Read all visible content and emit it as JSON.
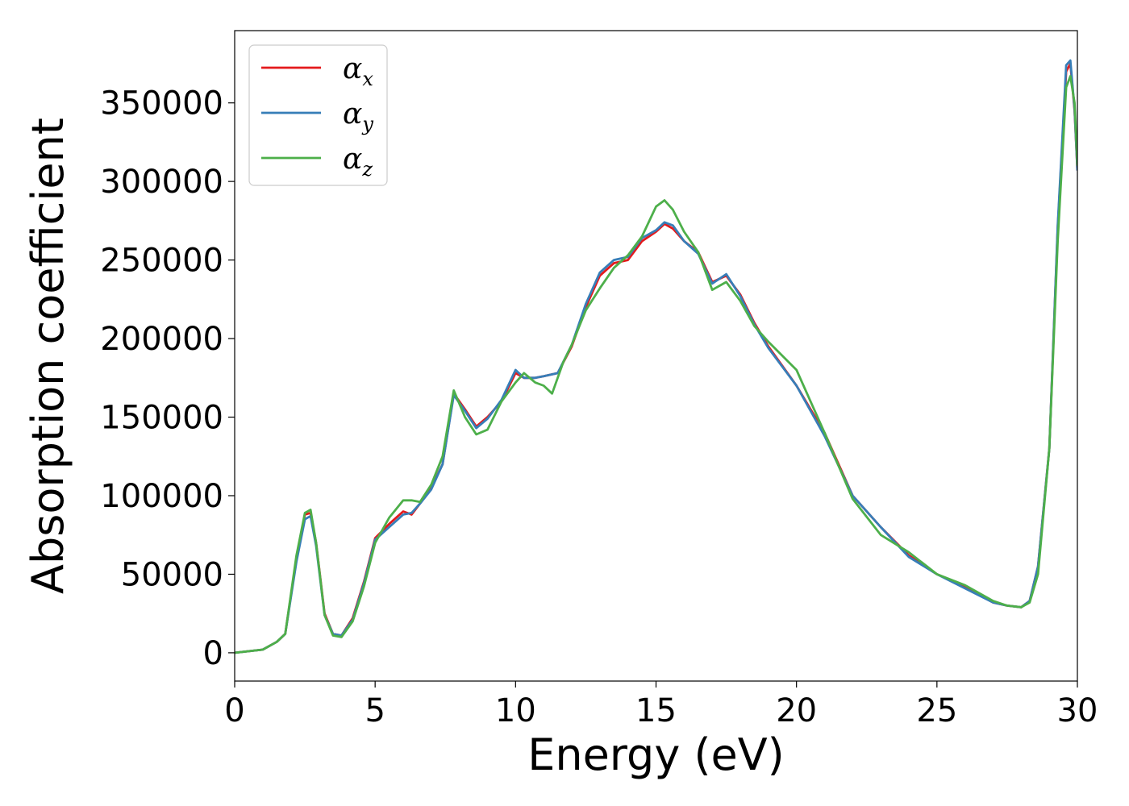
{
  "chart_data": {
    "type": "line",
    "title": "",
    "xlabel": "Energy (eV)",
    "ylabel": "Absorption coefficient",
    "xlim": [
      0,
      30
    ],
    "ylim": [
      -18000,
      396000
    ],
    "xticks": [
      0,
      5,
      10,
      15,
      20,
      25,
      30
    ],
    "xtick_labels": [
      "0",
      "5",
      "10",
      "15",
      "20",
      "25",
      "30"
    ],
    "yticks": [
      0,
      50000,
      100000,
      150000,
      200000,
      250000,
      300000,
      350000
    ],
    "ytick_labels": [
      "0",
      "50000",
      "100000",
      "150000",
      "200000",
      "250000",
      "300000",
      "350000"
    ],
    "grid": false,
    "legend_position": "top-left",
    "colors": {
      "alpha_x": "#e41a1c",
      "alpha_y": "#377eb8",
      "alpha_z": "#4daf4a"
    },
    "series": [
      {
        "name": "αx",
        "legend_base": "α",
        "legend_sub": "x",
        "color": "#e41a1c",
        "x": [
          0,
          1,
          1.5,
          1.8,
          2.2,
          2.5,
          2.7,
          2.9,
          3.2,
          3.5,
          3.8,
          4.2,
          4.6,
          5.0,
          5.5,
          6.0,
          6.3,
          6.6,
          7.0,
          7.4,
          7.8,
          8.2,
          8.6,
          9.0,
          9.5,
          10.0,
          10.3,
          10.7,
          11.0,
          11.5,
          12.0,
          12.5,
          13.0,
          13.5,
          14.0,
          14.5,
          15.0,
          15.3,
          15.6,
          16.0,
          16.5,
          17.0,
          17.5,
          18.0,
          18.5,
          19.0,
          20.0,
          21.0,
          22.0,
          23.0,
          24.0,
          25.0,
          26.0,
          27.0,
          27.5,
          28.0,
          28.3,
          28.6,
          29.0,
          29.3,
          29.6,
          29.75,
          29.9,
          30.0
        ],
        "y": [
          0,
          2000,
          7000,
          12000,
          60000,
          88000,
          89000,
          70000,
          25000,
          12000,
          11000,
          22000,
          45000,
          73000,
          82000,
          90000,
          88000,
          95000,
          105000,
          120000,
          165000,
          155000,
          144000,
          150000,
          160000,
          178000,
          175000,
          175000,
          176000,
          178000,
          195000,
          220000,
          240000,
          248000,
          250000,
          262000,
          268000,
          273000,
          270000,
          262000,
          255000,
          236000,
          240000,
          228000,
          210000,
          195000,
          170000,
          140000,
          100000,
          80000,
          62000,
          50000,
          42000,
          32000,
          30000,
          29000,
          33000,
          55000,
          130000,
          270000,
          370000,
          375000,
          345000,
          307000
        ]
      },
      {
        "name": "αy",
        "legend_base": "α",
        "legend_sub": "y",
        "color": "#377eb8",
        "x": [
          0,
          1,
          1.5,
          1.8,
          2.2,
          2.5,
          2.7,
          2.9,
          3.2,
          3.5,
          3.8,
          4.2,
          4.6,
          5.0,
          5.5,
          6.0,
          6.3,
          6.6,
          7.0,
          7.4,
          7.8,
          8.2,
          8.6,
          9.0,
          9.5,
          10.0,
          10.3,
          10.7,
          11.0,
          11.5,
          12.0,
          12.5,
          13.0,
          13.5,
          14.0,
          14.5,
          15.0,
          15.3,
          15.6,
          16.0,
          16.5,
          17.0,
          17.5,
          18.0,
          18.5,
          19.0,
          20.0,
          21.0,
          22.0,
          23.0,
          24.0,
          25.0,
          26.0,
          27.0,
          27.5,
          28.0,
          28.3,
          28.6,
          29.0,
          29.3,
          29.6,
          29.75,
          29.9,
          30.0
        ],
        "y": [
          0,
          2000,
          7000,
          12000,
          58000,
          85000,
          87000,
          68000,
          24000,
          12000,
          11000,
          21000,
          44000,
          72000,
          80000,
          88000,
          89000,
          95000,
          104000,
          120000,
          164000,
          154000,
          143000,
          149000,
          161000,
          180000,
          175000,
          175000,
          176000,
          178000,
          196000,
          222000,
          242000,
          250000,
          252000,
          264000,
          269000,
          274000,
          272000,
          262000,
          254000,
          235000,
          241000,
          227000,
          209000,
          194000,
          170000,
          138000,
          100000,
          80000,
          61000,
          50000,
          41000,
          32000,
          30000,
          29000,
          33000,
          55000,
          130000,
          272000,
          374000,
          377000,
          346000,
          307000
        ]
      },
      {
        "name": "αz",
        "legend_base": "α",
        "legend_sub": "z",
        "color": "#4daf4a",
        "x": [
          0,
          1,
          1.5,
          1.8,
          2.2,
          2.5,
          2.7,
          2.9,
          3.2,
          3.5,
          3.8,
          4.2,
          4.6,
          5.0,
          5.5,
          6.0,
          6.3,
          6.6,
          7.0,
          7.4,
          7.8,
          8.2,
          8.6,
          9.0,
          9.5,
          10.0,
          10.3,
          10.7,
          11.0,
          11.3,
          11.7,
          12.0,
          12.5,
          13.0,
          13.5,
          14.0,
          14.5,
          15.0,
          15.3,
          15.6,
          16.0,
          16.5,
          17.0,
          17.5,
          18.0,
          18.5,
          19.0,
          20.0,
          21.0,
          22.0,
          23.0,
          24.0,
          25.0,
          26.0,
          27.0,
          27.5,
          28.0,
          28.3,
          28.6,
          29.0,
          29.3,
          29.6,
          29.75,
          29.9,
          30.0
        ],
        "y": [
          0,
          2000,
          7000,
          12000,
          62000,
          89000,
          91000,
          70000,
          24000,
          11000,
          10000,
          20000,
          42000,
          70000,
          86000,
          97000,
          97000,
          96000,
          107000,
          125000,
          167000,
          150000,
          139000,
          142000,
          160000,
          172000,
          178000,
          172000,
          170000,
          165000,
          185000,
          196000,
          218000,
          232000,
          245000,
          253000,
          265000,
          284000,
          288000,
          282000,
          268000,
          255000,
          231000,
          236000,
          224000,
          208000,
          198000,
          180000,
          140000,
          98000,
          75000,
          64000,
          50000,
          43000,
          33000,
          30000,
          29000,
          32000,
          50000,
          130000,
          262000,
          360000,
          367000,
          350000,
          310000
        ]
      }
    ]
  }
}
